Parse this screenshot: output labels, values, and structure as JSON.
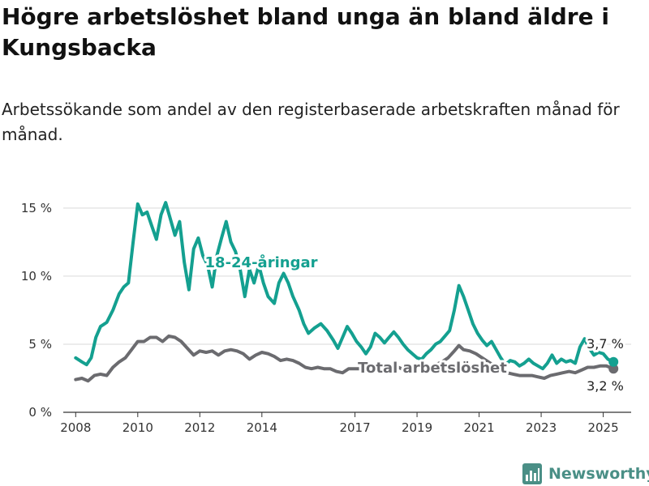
{
  "title": "Högre arbetslöshet bland unga än bland äldre i Kungsbacka",
  "subtitle": "Arbetssökande som andel av den registerbaserade arbetskraften månad för månad.",
  "brand": {
    "name": "Newsworthy",
    "icon": "bar-chart-logo-icon"
  },
  "colors": {
    "youth": "#14a090",
    "total": "#6b6b6f",
    "grid": "#d9d9d9",
    "brand": "#4a8f86"
  },
  "chart_data": {
    "type": "line",
    "ylim": [
      0,
      16
    ],
    "y_ticks": [
      0,
      5,
      10,
      15
    ],
    "y_tick_labels": [
      "0 %",
      "5 %",
      "10 %",
      "15 %"
    ],
    "x_ticks": [
      2008,
      2010,
      2012,
      2014,
      2017,
      2019,
      2021,
      2023,
      2025
    ],
    "x_tick_labels": [
      "2008",
      "2010",
      "2012",
      "2014",
      "2017",
      "2019",
      "2021",
      "2023",
      "2025"
    ],
    "grid": true,
    "series": [
      {
        "name": "18-24-åringar",
        "color": "#14a090",
        "end_label": "3,7 %",
        "points": [
          [
            2008.0,
            4.0
          ],
          [
            2008.2,
            3.7
          ],
          [
            2008.35,
            3.5
          ],
          [
            2008.5,
            4.0
          ],
          [
            2008.65,
            5.5
          ],
          [
            2008.8,
            6.3
          ],
          [
            2009.0,
            6.6
          ],
          [
            2009.2,
            7.5
          ],
          [
            2009.4,
            8.7
          ],
          [
            2009.55,
            9.2
          ],
          [
            2009.7,
            9.5
          ],
          [
            2009.85,
            12.5
          ],
          [
            2010.0,
            15.3
          ],
          [
            2010.15,
            14.5
          ],
          [
            2010.3,
            14.7
          ],
          [
            2010.45,
            13.7
          ],
          [
            2010.6,
            12.7
          ],
          [
            2010.75,
            14.5
          ],
          [
            2010.9,
            15.4
          ],
          [
            2011.05,
            14.2
          ],
          [
            2011.2,
            13.0
          ],
          [
            2011.35,
            14.0
          ],
          [
            2011.5,
            11.0
          ],
          [
            2011.65,
            9.0
          ],
          [
            2011.8,
            12.0
          ],
          [
            2011.95,
            12.8
          ],
          [
            2012.1,
            11.5
          ],
          [
            2012.25,
            10.8
          ],
          [
            2012.4,
            9.2
          ],
          [
            2012.55,
            11.5
          ],
          [
            2012.7,
            12.8
          ],
          [
            2012.85,
            14.0
          ],
          [
            2013.0,
            12.5
          ],
          [
            2013.15,
            11.8
          ],
          [
            2013.3,
            10.5
          ],
          [
            2013.45,
            8.5
          ],
          [
            2013.6,
            10.5
          ],
          [
            2013.75,
            9.5
          ],
          [
            2013.9,
            10.8
          ],
          [
            2014.05,
            9.5
          ],
          [
            2014.2,
            8.5
          ],
          [
            2014.4,
            8.0
          ],
          [
            2014.55,
            9.5
          ],
          [
            2014.7,
            10.2
          ],
          [
            2014.85,
            9.5
          ],
          [
            2015.0,
            8.5
          ],
          [
            2015.2,
            7.5
          ],
          [
            2015.35,
            6.5
          ],
          [
            2015.5,
            5.8
          ],
          [
            2015.7,
            6.2
          ],
          [
            2015.9,
            6.5
          ],
          [
            2016.1,
            6.0
          ],
          [
            2016.3,
            5.3
          ],
          [
            2016.45,
            4.7
          ],
          [
            2016.6,
            5.5
          ],
          [
            2016.75,
            6.3
          ],
          [
            2016.9,
            5.8
          ],
          [
            2017.05,
            5.2
          ],
          [
            2017.2,
            4.8
          ],
          [
            2017.35,
            4.3
          ],
          [
            2017.5,
            4.8
          ],
          [
            2017.65,
            5.8
          ],
          [
            2017.8,
            5.5
          ],
          [
            2017.95,
            5.1
          ],
          [
            2018.1,
            5.5
          ],
          [
            2018.25,
            5.9
          ],
          [
            2018.4,
            5.5
          ],
          [
            2018.55,
            5.0
          ],
          [
            2018.7,
            4.6
          ],
          [
            2018.85,
            4.3
          ],
          [
            2019.0,
            4.0
          ],
          [
            2019.15,
            3.9
          ],
          [
            2019.3,
            4.3
          ],
          [
            2019.45,
            4.6
          ],
          [
            2019.6,
            5.0
          ],
          [
            2019.75,
            5.2
          ],
          [
            2019.9,
            5.6
          ],
          [
            2020.05,
            6.0
          ],
          [
            2020.2,
            7.5
          ],
          [
            2020.35,
            9.3
          ],
          [
            2020.5,
            8.5
          ],
          [
            2020.65,
            7.5
          ],
          [
            2020.8,
            6.5
          ],
          [
            2020.95,
            5.8
          ],
          [
            2021.1,
            5.3
          ],
          [
            2021.25,
            4.9
          ],
          [
            2021.4,
            5.2
          ],
          [
            2021.55,
            4.6
          ],
          [
            2021.7,
            4.0
          ],
          [
            2021.85,
            3.5
          ],
          [
            2022.0,
            3.8
          ],
          [
            2022.15,
            3.7
          ],
          [
            2022.3,
            3.4
          ],
          [
            2022.45,
            3.6
          ],
          [
            2022.6,
            3.9
          ],
          [
            2022.75,
            3.6
          ],
          [
            2022.9,
            3.4
          ],
          [
            2023.05,
            3.2
          ],
          [
            2023.2,
            3.6
          ],
          [
            2023.35,
            4.2
          ],
          [
            2023.5,
            3.6
          ],
          [
            2023.65,
            3.9
          ],
          [
            2023.8,
            3.7
          ],
          [
            2023.95,
            3.8
          ],
          [
            2024.1,
            3.6
          ],
          [
            2024.25,
            4.8
          ],
          [
            2024.4,
            5.4
          ],
          [
            2024.55,
            4.7
          ],
          [
            2024.7,
            4.2
          ],
          [
            2024.85,
            4.4
          ],
          [
            2025.0,
            4.3
          ],
          [
            2025.15,
            3.9
          ],
          [
            2025.33,
            3.7
          ]
        ]
      },
      {
        "name": "Total arbetslöshet",
        "color": "#6b6b6f",
        "end_label": "3,2 %",
        "points": [
          [
            2008.0,
            2.4
          ],
          [
            2008.2,
            2.5
          ],
          [
            2008.4,
            2.3
          ],
          [
            2008.6,
            2.7
          ],
          [
            2008.8,
            2.8
          ],
          [
            2009.0,
            2.7
          ],
          [
            2009.2,
            3.3
          ],
          [
            2009.4,
            3.7
          ],
          [
            2009.6,
            4.0
          ],
          [
            2009.8,
            4.6
          ],
          [
            2010.0,
            5.2
          ],
          [
            2010.2,
            5.2
          ],
          [
            2010.4,
            5.5
          ],
          [
            2010.6,
            5.5
          ],
          [
            2010.8,
            5.2
          ],
          [
            2011.0,
            5.6
          ],
          [
            2011.2,
            5.5
          ],
          [
            2011.4,
            5.2
          ],
          [
            2011.6,
            4.7
          ],
          [
            2011.8,
            4.2
          ],
          [
            2012.0,
            4.5
          ],
          [
            2012.2,
            4.4
          ],
          [
            2012.4,
            4.5
          ],
          [
            2012.6,
            4.2
          ],
          [
            2012.8,
            4.5
          ],
          [
            2013.0,
            4.6
          ],
          [
            2013.2,
            4.5
          ],
          [
            2013.4,
            4.3
          ],
          [
            2013.6,
            3.9
          ],
          [
            2013.8,
            4.2
          ],
          [
            2014.0,
            4.4
          ],
          [
            2014.2,
            4.3
          ],
          [
            2014.4,
            4.1
          ],
          [
            2014.6,
            3.8
          ],
          [
            2014.8,
            3.9
          ],
          [
            2015.0,
            3.8
          ],
          [
            2015.2,
            3.6
          ],
          [
            2015.4,
            3.3
          ],
          [
            2015.6,
            3.2
          ],
          [
            2015.8,
            3.3
          ],
          [
            2016.0,
            3.2
          ],
          [
            2016.2,
            3.2
          ],
          [
            2016.4,
            3.0
          ],
          [
            2016.6,
            2.9
          ],
          [
            2016.8,
            3.2
          ],
          [
            2017.0,
            3.2
          ],
          [
            2017.2,
            3.2
          ],
          [
            2017.4,
            3.4
          ],
          [
            2017.6,
            3.4
          ],
          [
            2017.8,
            3.3
          ],
          [
            2018.0,
            3.2
          ],
          [
            2018.2,
            3.2
          ],
          [
            2018.4,
            3.3
          ],
          [
            2018.6,
            3.1
          ],
          [
            2018.8,
            3.0
          ],
          [
            2019.0,
            3.0
          ],
          [
            2019.2,
            3.2
          ],
          [
            2019.4,
            3.4
          ],
          [
            2019.6,
            3.5
          ],
          [
            2019.8,
            3.7
          ],
          [
            2020.0,
            4.0
          ],
          [
            2020.2,
            4.5
          ],
          [
            2020.35,
            4.9
          ],
          [
            2020.5,
            4.6
          ],
          [
            2020.7,
            4.5
          ],
          [
            2020.9,
            4.3
          ],
          [
            2021.1,
            4.0
          ],
          [
            2021.3,
            3.7
          ],
          [
            2021.5,
            3.4
          ],
          [
            2021.7,
            3.1
          ],
          [
            2021.9,
            2.9
          ],
          [
            2022.1,
            2.8
          ],
          [
            2022.3,
            2.7
          ],
          [
            2022.5,
            2.7
          ],
          [
            2022.7,
            2.7
          ],
          [
            2022.9,
            2.6
          ],
          [
            2023.1,
            2.5
          ],
          [
            2023.3,
            2.7
          ],
          [
            2023.5,
            2.8
          ],
          [
            2023.7,
            2.9
          ],
          [
            2023.9,
            3.0
          ],
          [
            2024.1,
            2.9
          ],
          [
            2024.3,
            3.1
          ],
          [
            2024.5,
            3.3
          ],
          [
            2024.7,
            3.3
          ],
          [
            2024.9,
            3.4
          ],
          [
            2025.1,
            3.4
          ],
          [
            2025.33,
            3.2
          ]
        ]
      }
    ]
  }
}
